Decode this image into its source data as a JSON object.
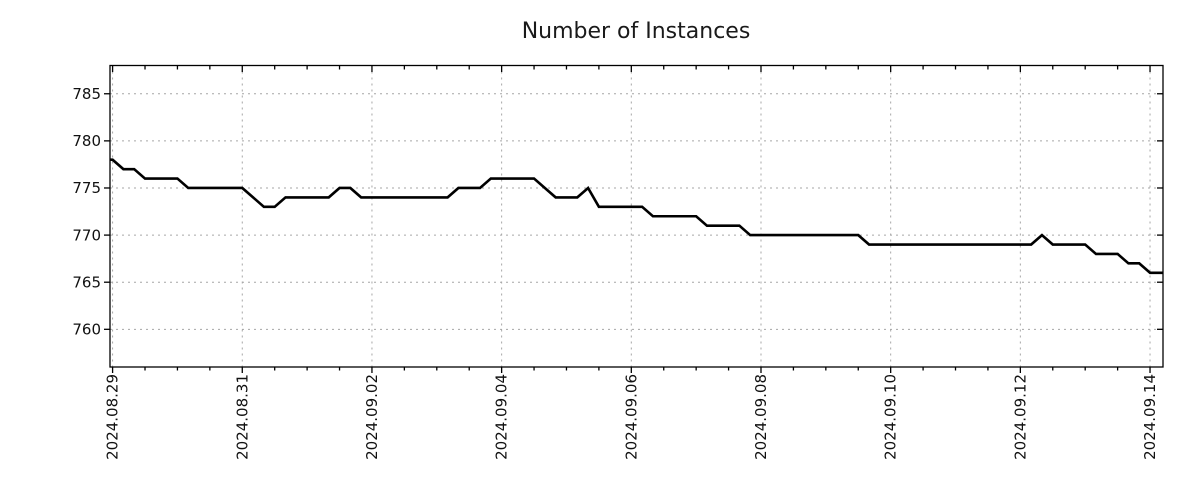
{
  "chart_data": {
    "type": "line",
    "title": "Number of Instances",
    "xlabel": "",
    "ylabel": "",
    "legend": null,
    "grid": true,
    "background_color": "#ffffff",
    "line_color": "#000000",
    "line_width": 2.6,
    "grid_color": "#a6a6a6",
    "axis_color": "#000000",
    "y_ticks": [
      760,
      765,
      770,
      775,
      780,
      785
    ],
    "ylim": [
      756,
      788
    ],
    "xlim_days": [
      -0.04,
      16.2
    ],
    "x_major_ticks": [
      {
        "label": "2024.08.29",
        "day": 0
      },
      {
        "label": "2024.08.31",
        "day": 2
      },
      {
        "label": "2024.09.02",
        "day": 4
      },
      {
        "label": "2024.09.04",
        "day": 6
      },
      {
        "label": "2024.09.06",
        "day": 8
      },
      {
        "label": "2024.09.08",
        "day": 10
      },
      {
        "label": "2024.09.10",
        "day": 12
      },
      {
        "label": "2024.09.12",
        "day": 14
      },
      {
        "label": "2024.09.14",
        "day": 16
      }
    ],
    "x_minor_interval_days": 0.5,
    "series": [
      {
        "name": "instances",
        "start_label": "2024.08.29",
        "interval_hours": 4,
        "values": [
          778,
          777,
          777,
          776,
          776,
          776,
          776,
          775,
          775,
          775,
          775,
          775,
          775,
          774,
          773,
          773,
          774,
          774,
          774,
          774,
          774,
          775,
          775,
          774,
          774,
          774,
          774,
          774,
          774,
          774,
          774,
          774,
          775,
          775,
          775,
          776,
          776,
          776,
          776,
          776,
          775,
          774,
          774,
          774,
          775,
          773,
          773,
          773,
          773,
          773,
          772,
          772,
          772,
          772,
          772,
          771,
          771,
          771,
          771,
          770,
          770,
          770,
          770,
          770,
          770,
          770,
          770,
          770,
          770,
          770,
          769,
          769,
          769,
          769,
          769,
          769,
          769,
          769,
          769,
          769,
          769,
          769,
          769,
          769,
          769,
          769,
          770,
          769,
          769,
          769,
          769,
          768,
          768,
          768,
          767,
          767,
          766,
          766
        ]
      }
    ]
  }
}
